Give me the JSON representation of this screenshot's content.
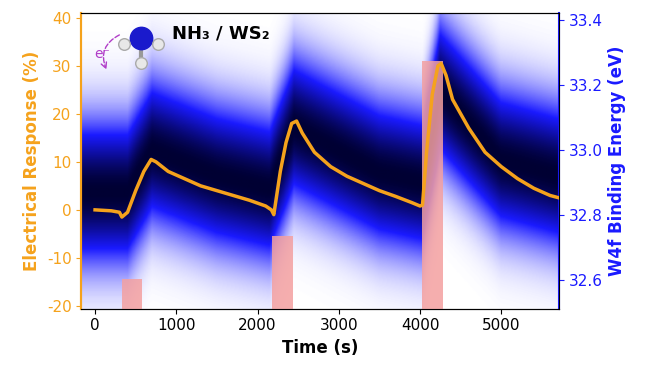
{
  "chart_data": {
    "type": "line",
    "x_label": "Time (s)",
    "y_label": "Electrical Response (%)",
    "y2_label": "W4f Binding Energy (eV)",
    "annotations": [
      "NH₃ / WS₂",
      "e⁻"
    ],
    "color": "#f5a21c",
    "x": [
      0,
      200,
      300,
      330,
      400,
      500,
      600,
      690,
      750,
      900,
      1100,
      1300,
      1500,
      1700,
      1900,
      2100,
      2170,
      2200,
      2280,
      2350,
      2420,
      2480,
      2550,
      2700,
      2900,
      3100,
      3300,
      3500,
      3700,
      3900,
      4000,
      4030,
      4080,
      4150,
      4220,
      4260,
      4320,
      4400,
      4600,
      4800,
      5000,
      5200,
      5400,
      5600,
      5710
    ],
    "values": [
      0,
      -0.2,
      -0.5,
      -1.5,
      -0.5,
      4,
      8,
      10.5,
      10,
      8,
      6.5,
      5,
      4,
      3,
      2,
      0.8,
      0,
      -1,
      8,
      14,
      18,
      18.5,
      16,
      12,
      9,
      7,
      5.5,
      4,
      2.8,
      1.5,
      0.8,
      1,
      12,
      24,
      30,
      30.5,
      28,
      23,
      17,
      12,
      9,
      6.5,
      4.5,
      3,
      2.5
    ],
    "xlim": [
      -170,
      5710
    ],
    "xticks": [
      0,
      1000,
      2000,
      3000,
      4000,
      5000
    ],
    "ylim": [
      -20.6,
      41
    ],
    "yticks": [
      -20,
      -10,
      0,
      10,
      20,
      30,
      40
    ],
    "y2lim": [
      32.51,
      33.42
    ],
    "y2ticks": [
      32.6,
      32.8,
      {
        "value": 33,
        "label": "33.0"
      },
      33.2,
      33.4
    ],
    "pulses": {
      "start": [
        330,
        2180,
        4030
      ],
      "end": [
        580,
        2430,
        4280
      ],
      "values": [
        -14.5,
        -5.5,
        31
      ],
      "color": "#f4a0a0"
    },
    "binding_energy": {
      "axis": "y2",
      "color": "#1a1aff",
      "x": [
        0,
        400,
        700,
        1500,
        2150,
        2450,
        3500,
        4030,
        4250,
        5000,
        5710
      ],
      "center": [
        32.87,
        32.87,
        33.0,
        32.92,
        32.88,
        33.07,
        32.93,
        32.9,
        33.18,
        32.97,
        32.92
      ],
      "fwhm": 0.35
    }
  }
}
